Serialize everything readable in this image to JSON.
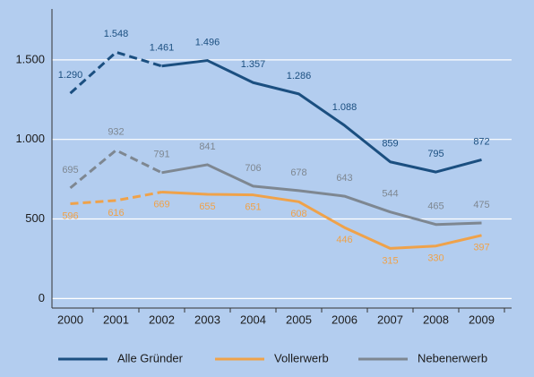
{
  "chart_data": {
    "type": "line",
    "categories": [
      "2000",
      "2001",
      "2002",
      "2003",
      "2004",
      "2005",
      "2006",
      "2007",
      "2008",
      "2009"
    ],
    "ylim": [
      -60,
      1820
    ],
    "yticks": [
      0,
      500,
      {
        "value": 1000,
        "label": "1.000"
      },
      {
        "value": 1500,
        "label": "1.500"
      }
    ],
    "grid": true,
    "legend": "bottom",
    "series": [
      {
        "name": "Alle Gründer",
        "color": "#1b4f80",
        "label_position": "above",
        "dash_until_index": 2,
        "values": [
          1290,
          1548,
          1461,
          1496,
          1357,
          1286,
          1088,
          859,
          795,
          872
        ],
        "value_labels": [
          "1.290",
          "1.548",
          "1.461",
          "1.496",
          "1.357",
          "1.286",
          "1.088",
          "859",
          "795",
          "872"
        ]
      },
      {
        "name": "Vollerwerb",
        "color": "#efa24a",
        "label_position": "below",
        "dash_until_index": 2,
        "values": [
          596,
          616,
          669,
          655,
          651,
          608,
          446,
          315,
          330,
          397
        ]
      },
      {
        "name": "Nebenerwerb",
        "color": "#7e8791",
        "label_position": "above",
        "dash_until_index": 2,
        "values": [
          695,
          932,
          791,
          841,
          706,
          678,
          643,
          544,
          465,
          475
        ]
      }
    ]
  }
}
